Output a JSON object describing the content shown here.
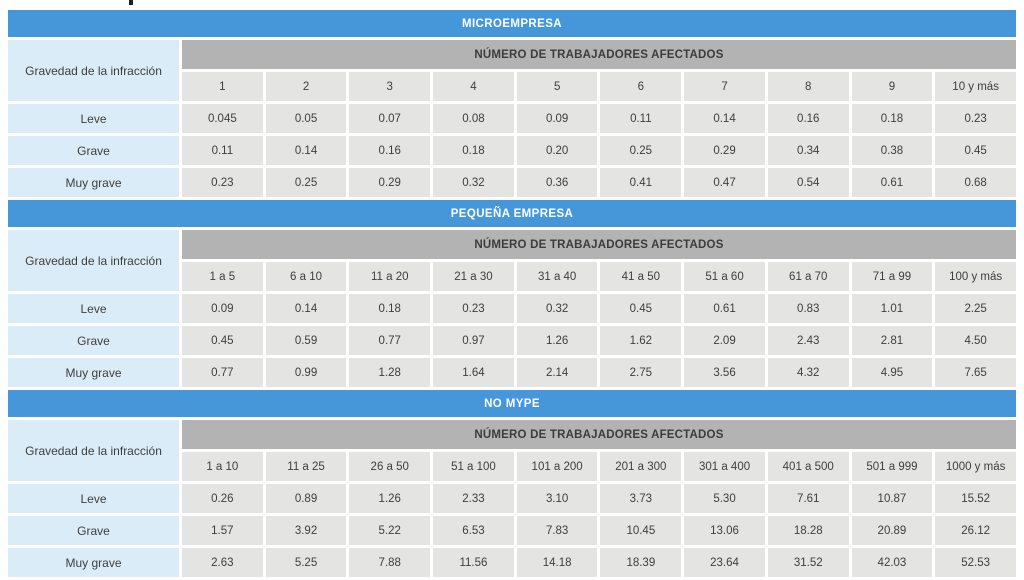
{
  "colors": {
    "title_bar": "#4697D9",
    "band": "#B3B3B3",
    "data_cell": "#E4E4E3",
    "label_cell": "#D9ECF8",
    "text": "#3E3E3D",
    "title_text": "#FFFFFF"
  },
  "labels": {
    "gravedad": "Gravedad de la infracción",
    "band": "NÚMERO DE TRABAJADORES AFECTADOS"
  },
  "sections": [
    {
      "title": "MICROEMPRESA",
      "col_headers": [
        "1",
        "2",
        "3",
        "4",
        "5",
        "6",
        "7",
        "8",
        "9",
        "10 y más"
      ],
      "rows": [
        {
          "label": "Leve",
          "values": [
            "0.045",
            "0.05",
            "0.07",
            "0.08",
            "0.09",
            "0.11",
            "0.14",
            "0.16",
            "0.18",
            "0.23"
          ]
        },
        {
          "label": "Grave",
          "values": [
            "0.11",
            "0.14",
            "0.16",
            "0.18",
            "0.20",
            "0.25",
            "0.29",
            "0.34",
            "0.38",
            "0.45"
          ]
        },
        {
          "label": "Muy grave",
          "values": [
            "0.23",
            "0.25",
            "0.29",
            "0.32",
            "0.36",
            "0.41",
            "0.47",
            "0.54",
            "0.61",
            "0.68"
          ]
        }
      ]
    },
    {
      "title": "PEQUEÑA EMPRESA",
      "col_headers": [
        "1 a 5",
        "6 a 10",
        "11 a 20",
        "21 a 30",
        "31 a 40",
        "41 a 50",
        "51 a 60",
        "61 a 70",
        "71 a 99",
        "100 y más"
      ],
      "rows": [
        {
          "label": "Leve",
          "values": [
            "0.09",
            "0.14",
            "0.18",
            "0.23",
            "0.32",
            "0.45",
            "0.61",
            "0.83",
            "1.01",
            "2.25"
          ]
        },
        {
          "label": "Grave",
          "values": [
            "0.45",
            "0.59",
            "0.77",
            "0.97",
            "1.26",
            "1.62",
            "2.09",
            "2.43",
            "2.81",
            "4.50"
          ]
        },
        {
          "label": "Muy grave",
          "values": [
            "0.77",
            "0.99",
            "1.28",
            "1.64",
            "2.14",
            "2.75",
            "3.56",
            "4.32",
            "4.95",
            "7.65"
          ]
        }
      ]
    },
    {
      "title": "NO MYPE",
      "col_headers": [
        "1 a 10",
        "11 a 25",
        "26 a 50",
        "51 a 100",
        "101 a 200",
        "201 a 300",
        "301 a 400",
        "401 a 500",
        "501 a 999",
        "1000 y más"
      ],
      "rows": [
        {
          "label": "Leve",
          "values": [
            "0.26",
            "0.89",
            "1.26",
            "2.33",
            "3.10",
            "3.73",
            "5.30",
            "7.61",
            "10.87",
            "15.52"
          ]
        },
        {
          "label": "Grave",
          "values": [
            "1.57",
            "3.92",
            "5.22",
            "6.53",
            "7.83",
            "10.45",
            "13.06",
            "18.28",
            "20.89",
            "26.12"
          ]
        },
        {
          "label": "Muy grave",
          "values": [
            "2.63",
            "5.25",
            "7.88",
            "11.56",
            "14.18",
            "18.39",
            "23.64",
            "31.52",
            "42.03",
            "52.53"
          ]
        }
      ]
    }
  ]
}
